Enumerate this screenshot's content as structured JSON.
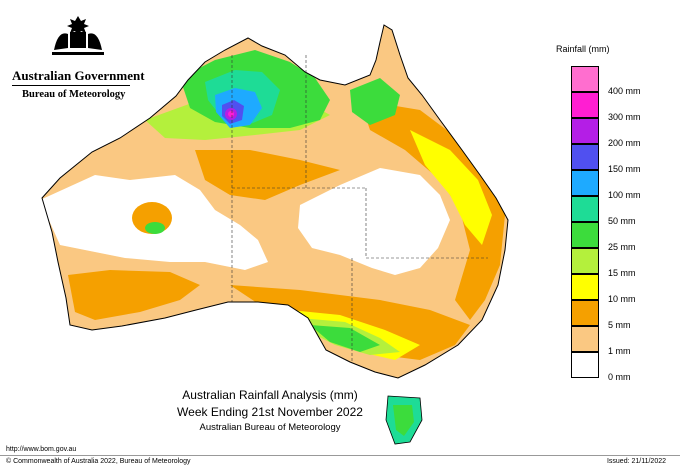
{
  "header": {
    "government": "Australian Government",
    "bureau": "Bureau of Meteorology"
  },
  "legend": {
    "title": "Rainfall (mm)",
    "items": [
      {
        "label": "400 mm",
        "color": "#ff6ecf"
      },
      {
        "label": "300 mm",
        "color": "#ff1ed2"
      },
      {
        "label": "200 mm",
        "color": "#b41ee6"
      },
      {
        "label": "150 mm",
        "color": "#5050f0"
      },
      {
        "label": "100 mm",
        "color": "#1eaaff"
      },
      {
        "label": "50 mm",
        "color": "#1edc96"
      },
      {
        "label": "25 mm",
        "color": "#3cdc3c"
      },
      {
        "label": "15 mm",
        "color": "#b4f03c"
      },
      {
        "label": "10 mm",
        "color": "#ffff00"
      },
      {
        "label": "5 mm",
        "color": "#f5a000"
      },
      {
        "label": "1 mm",
        "color": "#fac882"
      },
      {
        "label": "0 mm",
        "color": "#ffffff"
      }
    ]
  },
  "map": {
    "title_line1": "Australian Rainfall Analysis (mm)",
    "title_line2": "Week Ending 21st November 2022",
    "title_line3": "Australian Bureau of Meteorology"
  },
  "footer": {
    "url": "http://www.bom.gov.au",
    "copyright": "© Commonwealth of Australia 2022, Bureau of Meteorology",
    "issued": "Issued: 21/11/2022"
  },
  "colors": {
    "coast": "#000000",
    "border": "#333333"
  }
}
